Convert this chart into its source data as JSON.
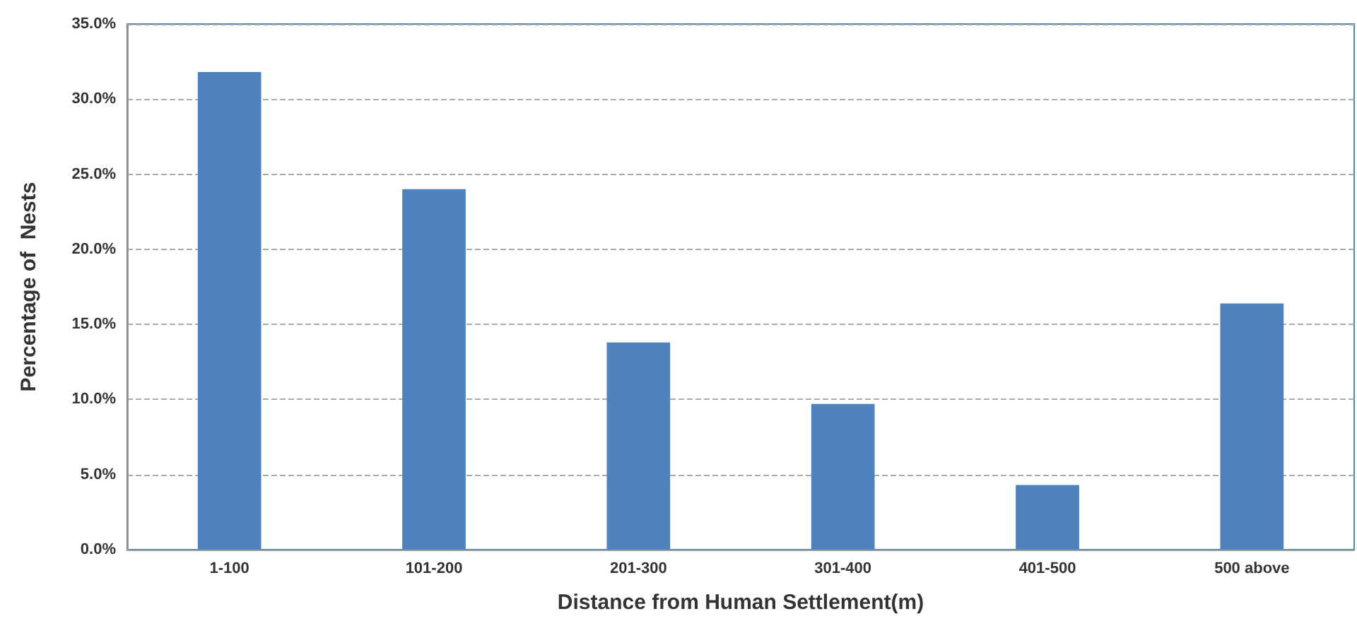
{
  "chart_data": {
    "type": "bar",
    "xlabel": "Distance from Human Settlement(m)",
    "ylabel": "Percentage of  Nests",
    "categories": [
      "1-100",
      "101-200",
      "201-300",
      "301-400",
      "401-500",
      "500 above"
    ],
    "values": [
      31.8,
      24.0,
      13.8,
      9.7,
      4.3,
      16.4
    ],
    "color": "#4f81bd",
    "ylim": [
      0,
      35
    ],
    "yticks": [
      {
        "value": 0,
        "label": "0.0%"
      },
      {
        "value": 5,
        "label": "5.0%"
      },
      {
        "value": 10,
        "label": "10.0%"
      },
      {
        "value": 15,
        "label": "15.0%"
      },
      {
        "value": 20,
        "label": "20.0%"
      },
      {
        "value": 25,
        "label": "25.0%"
      },
      {
        "value": 30,
        "label": "30.0%"
      },
      {
        "value": 35,
        "label": "35.0%"
      }
    ],
    "grid": "y"
  }
}
